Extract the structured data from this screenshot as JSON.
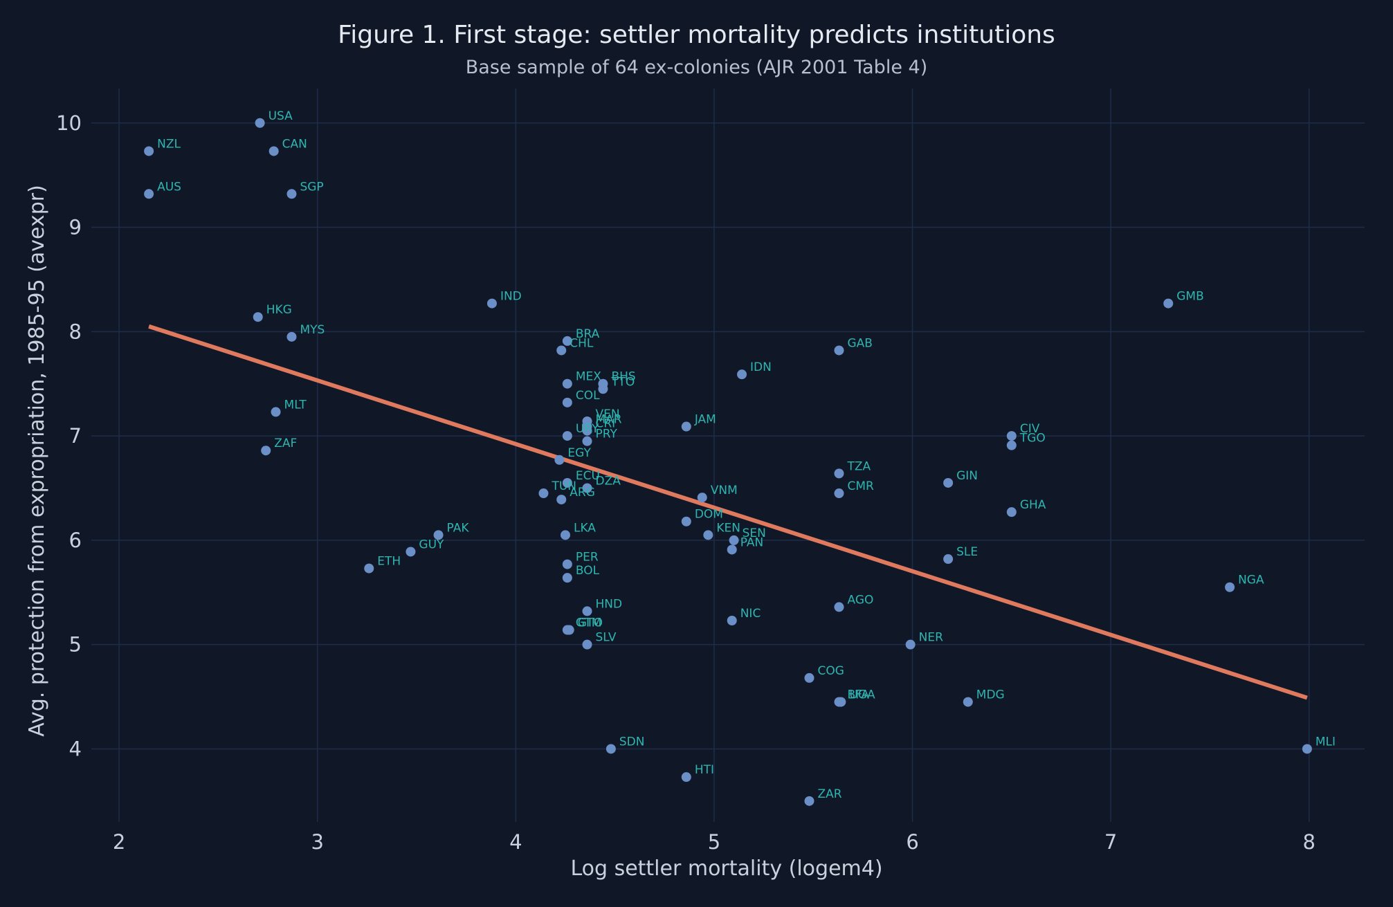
{
  "chart_data": {
    "type": "scatter",
    "title": "Figure 1. First stage: settler mortality predicts institutions",
    "subtitle": "Base sample of 64 ex-colonies (AJR 2001 Table 4)",
    "xlabel": "Log settler mortality (logem4)",
    "ylabel": "Avg. protection from expropriation, 1985-95 (avexpr)",
    "xlim": [
      1.86,
      8.28
    ],
    "ylim": [
      3.3,
      10.33
    ],
    "xticks": [
      2,
      3,
      4,
      5,
      6,
      7,
      8
    ],
    "yticks": [
      4,
      5,
      6,
      7,
      8,
      9,
      10
    ],
    "grid": true,
    "colors": {
      "background": "#101828",
      "grid": "#1e2c4a",
      "points": "#6b8fc7",
      "labels": "#2fb5b0",
      "fit_line": "#e07a5f"
    },
    "fit_line": {
      "x": [
        2.15,
        7.99
      ],
      "y": [
        8.05,
        4.49
      ]
    },
    "points": [
      {
        "label": "USA",
        "x": 2.71,
        "y": 10.0
      },
      {
        "label": "NZL",
        "x": 2.15,
        "y": 9.73
      },
      {
        "label": "CAN",
        "x": 2.78,
        "y": 9.73
      },
      {
        "label": "AUS",
        "x": 2.15,
        "y": 9.32
      },
      {
        "label": "SGP",
        "x": 2.87,
        "y": 9.32
      },
      {
        "label": "HKG",
        "x": 2.7,
        "y": 8.14
      },
      {
        "label": "MYS",
        "x": 2.87,
        "y": 7.95
      },
      {
        "label": "MLT",
        "x": 2.79,
        "y": 7.23
      },
      {
        "label": "ZAF",
        "x": 2.74,
        "y": 6.86
      },
      {
        "label": "IND",
        "x": 3.88,
        "y": 8.27
      },
      {
        "label": "ETH",
        "x": 3.26,
        "y": 5.73
      },
      {
        "label": "GUY",
        "x": 3.47,
        "y": 5.89
      },
      {
        "label": "PAK",
        "x": 3.61,
        "y": 6.05
      },
      {
        "label": "BRA",
        "x": 4.26,
        "y": 7.91
      },
      {
        "label": "CHL",
        "x": 4.23,
        "y": 7.82
      },
      {
        "label": "MEX",
        "x": 4.26,
        "y": 7.5
      },
      {
        "label": "BHS",
        "x": 4.44,
        "y": 7.5
      },
      {
        "label": "TTO",
        "x": 4.44,
        "y": 7.45
      },
      {
        "label": "COL",
        "x": 4.26,
        "y": 7.32
      },
      {
        "label": "VEN",
        "x": 4.36,
        "y": 7.14
      },
      {
        "label": "MAR",
        "x": 4.36,
        "y": 7.09
      },
      {
        "label": "CRI",
        "x": 4.36,
        "y": 7.05
      },
      {
        "label": "URY",
        "x": 4.26,
        "y": 7.0
      },
      {
        "label": "PRY",
        "x": 4.36,
        "y": 6.95
      },
      {
        "label": "EGY",
        "x": 4.22,
        "y": 6.77
      },
      {
        "label": "ECU",
        "x": 4.26,
        "y": 6.55
      },
      {
        "label": "DZA",
        "x": 4.36,
        "y": 6.5
      },
      {
        "label": "TUN",
        "x": 4.14,
        "y": 6.45
      },
      {
        "label": "ARG",
        "x": 4.23,
        "y": 6.39
      },
      {
        "label": "LKA",
        "x": 4.25,
        "y": 6.05
      },
      {
        "label": "PER",
        "x": 4.26,
        "y": 5.77
      },
      {
        "label": "BOL",
        "x": 4.26,
        "y": 5.64
      },
      {
        "label": "HND",
        "x": 4.36,
        "y": 5.32
      },
      {
        "label": "GTM",
        "x": 4.26,
        "y": 5.14
      },
      {
        "label": "GTO",
        "x": 4.27,
        "y": 5.14
      },
      {
        "label": "SLV",
        "x": 4.36,
        "y": 5.0
      },
      {
        "label": "SDN",
        "x": 4.48,
        "y": 4.0
      },
      {
        "label": "JAM",
        "x": 4.86,
        "y": 7.09
      },
      {
        "label": "DOM",
        "x": 4.86,
        "y": 6.18
      },
      {
        "label": "HTI",
        "x": 4.86,
        "y": 3.73
      },
      {
        "label": "VNM",
        "x": 4.94,
        "y": 6.41
      },
      {
        "label": "KEN",
        "x": 4.97,
        "y": 6.05
      },
      {
        "label": "SEN",
        "x": 5.1,
        "y": 6.0
      },
      {
        "label": "PAN",
        "x": 5.09,
        "y": 5.91
      },
      {
        "label": "NIC",
        "x": 5.09,
        "y": 5.23
      },
      {
        "label": "IDN",
        "x": 5.14,
        "y": 7.59
      },
      {
        "label": "COG",
        "x": 5.48,
        "y": 4.68
      },
      {
        "label": "ZAR",
        "x": 5.48,
        "y": 3.5
      },
      {
        "label": "GAB",
        "x": 5.63,
        "y": 7.82
      },
      {
        "label": "TZA",
        "x": 5.63,
        "y": 6.64
      },
      {
        "label": "CMR",
        "x": 5.63,
        "y": 6.45
      },
      {
        "label": "AGO",
        "x": 5.63,
        "y": 5.36
      },
      {
        "label": "BFA",
        "x": 5.63,
        "y": 4.45
      },
      {
        "label": "UGA",
        "x": 5.64,
        "y": 4.45
      },
      {
        "label": "NER",
        "x": 5.99,
        "y": 5.0
      },
      {
        "label": "GIN",
        "x": 6.18,
        "y": 6.55
      },
      {
        "label": "SLE",
        "x": 6.18,
        "y": 5.82
      },
      {
        "label": "MDG",
        "x": 6.28,
        "y": 4.45
      },
      {
        "label": "CIV",
        "x": 6.5,
        "y": 7.0
      },
      {
        "label": "TGO",
        "x": 6.5,
        "y": 6.91
      },
      {
        "label": "GHA",
        "x": 6.5,
        "y": 6.27
      },
      {
        "label": "GMB",
        "x": 7.29,
        "y": 8.27
      },
      {
        "label": "NGA",
        "x": 7.6,
        "y": 5.55
      },
      {
        "label": "MLI",
        "x": 7.99,
        "y": 4.0
      }
    ]
  }
}
